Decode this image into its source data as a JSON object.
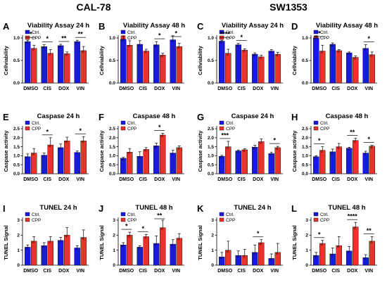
{
  "groups": [
    {
      "label": "CAL-78"
    },
    {
      "label": "SW1353"
    }
  ],
  "colors": {
    "ctrl": "#1a1adc",
    "cpp": "#e8332a",
    "axis": "#000000"
  },
  "chart_data": [
    {
      "type": "bar",
      "letter": "A",
      "title": "Viability Assay 24 h",
      "ylabel": "Cellviability",
      "categories": [
        "DMSO",
        "CIS",
        "DOX",
        "VIN"
      ],
      "ylim": [
        0,
        1
      ],
      "yticks": [
        "0.0",
        "0.5",
        "1.0"
      ],
      "legend": [
        "Ctrl.",
        "CPP"
      ],
      "series": [
        {
          "name": "Ctrl.",
          "values": [
            0.92,
            0.81,
            0.83,
            0.92
          ],
          "err": [
            0.03,
            0.04,
            0.03,
            0.03
          ]
        },
        {
          "name": "CPP",
          "values": [
            0.77,
            0.66,
            0.65,
            0.72
          ],
          "err": [
            0.07,
            0.08,
            0.04,
            0.09
          ]
        }
      ],
      "annotations": [
        "*",
        "*",
        "**",
        "**"
      ]
    },
    {
      "type": "bar",
      "letter": "B",
      "title": "Viability Assay 48 h",
      "ylabel": "Cellviability",
      "categories": [
        "DMSO",
        "CIS",
        "DOX",
        "VIN"
      ],
      "ylim": [
        0,
        1
      ],
      "yticks": [
        "0.0",
        "0.5",
        "1.0"
      ],
      "legend": [
        "Ctrl.",
        "CPP"
      ],
      "series": [
        {
          "name": "Ctrl.",
          "values": [
            0.97,
            0.86,
            0.85,
            0.96
          ],
          "err": [
            0.08,
            0.08,
            0.07,
            0.09
          ]
        },
        {
          "name": "CPP",
          "values": [
            0.84,
            0.71,
            0.62,
            0.81
          ],
          "err": [
            0.1,
            0.04,
            0.04,
            0.07
          ]
        }
      ],
      "annotations": [
        "",
        "",
        "*",
        "*"
      ]
    },
    {
      "type": "bar",
      "letter": "C",
      "title": "Viability Assay 24 h",
      "ylabel": "Cellviability",
      "categories": [
        "DMSO",
        "CIS",
        "DOX",
        "VIN"
      ],
      "ylim": [
        0,
        1
      ],
      "yticks": [
        "0.0",
        "0.5",
        "1.0"
      ],
      "legend": [
        "Ctrl.",
        "CPP"
      ],
      "series": [
        {
          "name": "Ctrl.",
          "values": [
            0.93,
            0.85,
            0.64,
            0.71
          ],
          "err": [
            0.02,
            0.03,
            0.03,
            0.03
          ]
        },
        {
          "name": "CPP",
          "values": [
            0.66,
            0.73,
            0.58,
            0.64
          ],
          "err": [
            0.09,
            0.03,
            0.04,
            0.04
          ]
        }
      ],
      "annotations": [
        "****",
        "*",
        "",
        ""
      ]
    },
    {
      "type": "bar",
      "letter": "D",
      "title": "Viability Assay 48 h",
      "ylabel": "Cellviability",
      "categories": [
        "DMSO",
        "CIS",
        "DOX",
        "VIN"
      ],
      "ylim": [
        0,
        1
      ],
      "yticks": [
        "0.0",
        "0.5",
        "1.0"
      ],
      "legend": [
        "Ctrl.",
        "CPP"
      ],
      "series": [
        {
          "name": "Ctrl.",
          "values": [
            1.0,
            0.86,
            0.67,
            0.77
          ],
          "err": [
            0.05,
            0.03,
            0.02,
            0.08
          ]
        },
        {
          "name": "CPP",
          "values": [
            0.71,
            0.72,
            0.57,
            0.63
          ],
          "err": [
            0.13,
            0.02,
            0.03,
            0.06
          ]
        }
      ],
      "annotations": [
        "*",
        "",
        "",
        "*"
      ]
    },
    {
      "type": "bar",
      "letter": "E",
      "title": "Caspase 24 h",
      "ylabel": "Caspase activity",
      "categories": [
        "DMSO",
        "CIS",
        "DOX",
        "VIN"
      ],
      "ylim": [
        0,
        2.5
      ],
      "yticks": [
        "0.0",
        "0.5",
        "1.0",
        "1.5",
        "2.0",
        "2.5"
      ],
      "legend": [
        "Ctrl.",
        "CPP"
      ],
      "series": [
        {
          "name": "Ctrl.",
          "values": [
            0.95,
            1.03,
            1.45,
            1.18
          ],
          "err": [
            0.15,
            0.12,
            0.2,
            0.08
          ]
        },
        {
          "name": "CPP",
          "values": [
            1.15,
            1.6,
            1.83,
            1.83
          ],
          "err": [
            0.25,
            0.4,
            0.2,
            0.23
          ]
        }
      ],
      "annotations": [
        "",
        "*",
        "",
        "*"
      ]
    },
    {
      "type": "bar",
      "letter": "F",
      "title": "Caspase 48 h",
      "ylabel": "Caspase activity",
      "categories": [
        "DMSO",
        "CIS",
        "DOX",
        "VIN"
      ],
      "ylim": [
        0,
        2.5
      ],
      "yticks": [
        "0.0",
        "0.5",
        "1.0",
        "1.5",
        "2.0",
        "2.5"
      ],
      "legend": [
        "Ctrl.",
        "CPP"
      ],
      "series": [
        {
          "name": "Ctrl.",
          "values": [
            0.86,
            0.97,
            1.55,
            1.15
          ],
          "err": [
            0.05,
            0.25,
            0.15,
            0.15
          ]
        },
        {
          "name": "CPP",
          "values": [
            1.2,
            1.35,
            2.15,
            1.45
          ],
          "err": [
            0.2,
            0.1,
            0.1,
            0.1
          ]
        }
      ],
      "annotations": [
        "",
        "",
        "*",
        ""
      ]
    },
    {
      "type": "bar",
      "letter": "G",
      "title": "Caspase 24 h",
      "ylabel": "Caspase activity",
      "categories": [
        "DMSO",
        "CIS",
        "DOX",
        "VIN"
      ],
      "ylim": [
        0,
        2.5
      ],
      "yticks": [
        "0.0",
        "0.5",
        "1.0",
        "1.5",
        "2.0",
        "2.5"
      ],
      "legend": [
        "Ctrl.",
        "CPP"
      ],
      "series": [
        {
          "name": "Ctrl.",
          "values": [
            0.97,
            1.27,
            1.48,
            1.12
          ],
          "err": [
            0.05,
            0.05,
            0.1,
            0.08
          ]
        },
        {
          "name": "CPP",
          "values": [
            1.5,
            1.33,
            1.78,
            1.45
          ],
          "err": [
            0.3,
            0.05,
            0.15,
            0.07
          ]
        }
      ],
      "annotations": [
        "***",
        "",
        "",
        "*"
      ]
    },
    {
      "type": "bar",
      "letter": "H",
      "title": "Caspase 48 h",
      "ylabel": "Caspase activity",
      "categories": [
        "DMSO",
        "CIS",
        "DOX",
        "VIN"
      ],
      "ylim": [
        0,
        2.5
      ],
      "yticks": [
        "0.0",
        "0.5",
        "1.0",
        "1.5",
        "2.0",
        "2.5"
      ],
      "legend": [
        "Ctrl.",
        "CPP"
      ],
      "series": [
        {
          "name": "Ctrl.",
          "values": [
            0.95,
            1.22,
            1.42,
            1.15
          ],
          "err": [
            0.05,
            0.15,
            0.05,
            0.1
          ]
        },
        {
          "name": "CPP",
          "values": [
            1.3,
            1.5,
            1.85,
            1.53
          ],
          "err": [
            0.2,
            0.18,
            0.12,
            0.05
          ]
        }
      ],
      "annotations": [
        "*",
        "",
        "**",
        "*"
      ]
    },
    {
      "type": "bar",
      "letter": "I",
      "title": "TUNEL 24 h",
      "ylabel": "TUNEL Signal",
      "categories": [
        "DMSO",
        "CIS",
        "DOX",
        "VIN"
      ],
      "ylim": [
        0,
        3
      ],
      "yticks": [
        "0",
        "1",
        "2",
        "3"
      ],
      "legend": [
        "Ctrl.",
        "CPP"
      ],
      "series": [
        {
          "name": "Ctrl.",
          "values": [
            1.2,
            1.3,
            1.65,
            1.15
          ],
          "err": [
            0.15,
            0.2,
            0.2,
            0.15
          ]
        },
        {
          "name": "CPP",
          "values": [
            1.6,
            1.6,
            2.0,
            1.85
          ],
          "err": [
            0.3,
            0.3,
            0.5,
            0.5
          ]
        }
      ],
      "annotations": [
        "",
        "",
        "",
        ""
      ]
    },
    {
      "type": "bar",
      "letter": "J",
      "title": "TUNEL 48 h",
      "ylabel": "TUNEL Signal",
      "categories": [
        "DMSO",
        "CIS",
        "DOX",
        "VIN"
      ],
      "ylim": [
        0,
        3
      ],
      "yticks": [
        "0",
        "1",
        "2",
        "3"
      ],
      "legend": [
        "Ctrl.",
        "CPP"
      ],
      "series": [
        {
          "name": "Ctrl.",
          "values": [
            1.35,
            1.2,
            1.45,
            1.4
          ],
          "err": [
            0.15,
            0.1,
            0.5,
            0.3
          ]
        },
        {
          "name": "CPP",
          "values": [
            2.0,
            1.9,
            2.5,
            1.8
          ],
          "err": [
            0.2,
            0.15,
            0.5,
            0.3
          ]
        }
      ],
      "annotations": [
        "*",
        "*",
        "**",
        ""
      ]
    },
    {
      "type": "bar",
      "letter": "K",
      "title": "TUNEL 24 h",
      "ylabel": "TUNEL Signal",
      "categories": [
        "DMSO",
        "CIS",
        "DOX",
        "VIN"
      ],
      "ylim": [
        0,
        3
      ],
      "yticks": [
        "0",
        "1",
        "2",
        "3"
      ],
      "legend": [
        "Ctrl.",
        "CPP"
      ],
      "series": [
        {
          "name": "Ctrl.",
          "values": [
            0.55,
            0.65,
            0.85,
            0.45
          ],
          "err": [
            0.3,
            0.3,
            0.5,
            0.3
          ]
        },
        {
          "name": "CPP",
          "values": [
            1.0,
            0.65,
            1.5,
            0.85
          ],
          "err": [
            0.6,
            0.4,
            0.2,
            0.6
          ]
        }
      ],
      "annotations": [
        "",
        "",
        "*",
        ""
      ]
    },
    {
      "type": "bar",
      "letter": "L",
      "title": "TUNEL 48 h",
      "ylabel": "TUNEL Signal",
      "categories": [
        "DMSO",
        "CIS",
        "DOX",
        "VIN"
      ],
      "ylim": [
        0,
        3
      ],
      "yticks": [
        "0",
        "1",
        "2",
        "3"
      ],
      "legend": [
        "Ctrl.",
        "CPP"
      ],
      "series": [
        {
          "name": "Ctrl.",
          "values": [
            0.65,
            0.75,
            0.95,
            0.5
          ],
          "err": [
            0.2,
            0.4,
            0.3,
            0.2
          ]
        },
        {
          "name": "CPP",
          "values": [
            1.45,
            1.3,
            2.55,
            1.6
          ],
          "err": [
            0.2,
            0.6,
            0.3,
            0.3
          ]
        }
      ],
      "annotations": [
        "*",
        "",
        "****",
        "**"
      ]
    }
  ]
}
